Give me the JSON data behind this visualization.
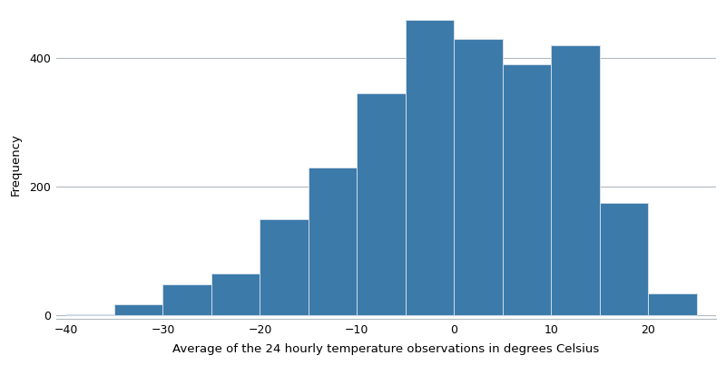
{
  "bin_edges": [
    -40,
    -35,
    -30,
    -25,
    -20,
    -15,
    -10,
    -5,
    0,
    5,
    10,
    15,
    20,
    25
  ],
  "frequencies": [
    2,
    18,
    48,
    65,
    150,
    230,
    345,
    460,
    430,
    390,
    420,
    175,
    35
  ],
  "bar_color": "#3c7aaa",
  "bar_edge_color": "#d0dde8",
  "xlabel": "Average of the 24 hourly temperature observations in degrees Celsius",
  "ylabel": "Frequency",
  "xlim": [
    -41,
    27
  ],
  "ylim": [
    -5,
    475
  ],
  "yticks": [
    0,
    200,
    400
  ],
  "xticks": [
    -40,
    -30,
    -20,
    -10,
    0,
    10,
    20
  ],
  "grid_color": "#b0b8c0",
  "background_color": "#ffffff",
  "xlabel_fontsize": 9.5,
  "ylabel_fontsize": 9.5,
  "tick_fontsize": 9,
  "figure_width": 8.0,
  "figure_height": 4.03
}
